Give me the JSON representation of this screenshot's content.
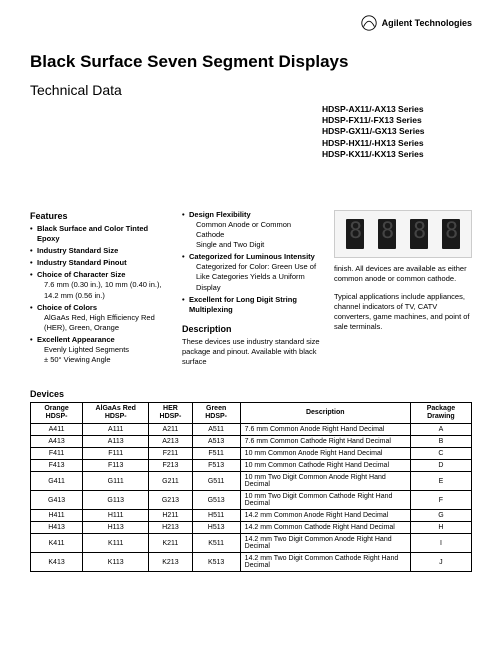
{
  "brand": "Agilent Technologies",
  "title": "Black Surface Seven Segment Displays",
  "subtitle": "Technical Data",
  "series": [
    "HDSP-AX11/-AX13 Series",
    "HDSP-FX11/-FX13 Series",
    "HDSP-GX11/-GX13 Series",
    "HDSP-HX11/-HX13 Series",
    "HDSP-KX11/-KX13 Series"
  ],
  "features_heading": "Features",
  "features": [
    {
      "b": "Black Surface and Color Tinted Epoxy",
      "sub": ""
    },
    {
      "b": "Industry Standard Size",
      "sub": ""
    },
    {
      "b": "Industry Standard Pinout",
      "sub": ""
    },
    {
      "b": "Choice of Character Size",
      "sub": "7.6 mm (0.30 in.), 10 mm (0.40 in.), 14.2 mm (0.56 in.)"
    },
    {
      "b": "Choice of Colors",
      "sub": "AlGaAs Red, High Efficiency Red (HER), Green, Orange"
    },
    {
      "b": "Excellent Appearance",
      "sub": "Evenly Lighted Segments\n± 50° Viewing Angle"
    }
  ],
  "col2": [
    {
      "b": "Design Flexibility",
      "sub": "Common Anode or Common Cathode\nSingle and Two Digit"
    },
    {
      "b": "Categorized for Luminous Intensity",
      "sub": "Categorized for Color: Green Use of Like Categories Yields a Uniform Display"
    },
    {
      "b": "Excellent for Long Digit String Multiplexing",
      "sub": ""
    }
  ],
  "description_heading": "Description",
  "description_text": "These devices use industry standard size package and pinout. Available with black surface",
  "col3_para1": "finish. All devices are available as either common anode or common cathode.",
  "col3_para2": "Typical applications include appliances, channel indicators of TV, CATV converters, game machines, and point of sale terminals.",
  "devices_heading": "Devices",
  "table": {
    "headers": [
      "Orange HDSP-",
      "AlGaAs Red HDSP-",
      "HER HDSP-",
      "Green HDSP-",
      "Description",
      "Package Drawing"
    ],
    "rows": [
      [
        "A411",
        "A111",
        "A211",
        "A511",
        "7.6 mm Common Anode Right Hand Decimal",
        "A"
      ],
      [
        "A413",
        "A113",
        "A213",
        "A513",
        "7.6 mm Common Cathode Right Hand Decimal",
        "B"
      ],
      [
        "F411",
        "F111",
        "F211",
        "F511",
        "10 mm Common Anode Right Hand Decimal",
        "C"
      ],
      [
        "F413",
        "F113",
        "F213",
        "F513",
        "10 mm Common Cathode Right Hand Decimal",
        "D"
      ],
      [
        "G411",
        "G111",
        "G211",
        "G511",
        "10 mm Two Digit Common Anode Right Hand Decimal",
        "E"
      ],
      [
        "G413",
        "G113",
        "G213",
        "G513",
        "10 mm Two Digit Common Cathode Right Hand Decimal",
        "F"
      ],
      [
        "H411",
        "H111",
        "H211",
        "H511",
        "14.2 mm Common Anode Right Hand Decimal",
        "G"
      ],
      [
        "H413",
        "H113",
        "H213",
        "H513",
        "14.2 mm Common Cathode Right Hand Decimal",
        "H"
      ],
      [
        "K411",
        "K111",
        "K211",
        "K511",
        "14.2 mm Two Digit Common Anode Right Hand Decimal",
        "I"
      ],
      [
        "K413",
        "K113",
        "K213",
        "K513",
        "14.2 mm Two Digit Common Cathode Right Hand Decimal",
        "J"
      ]
    ]
  }
}
